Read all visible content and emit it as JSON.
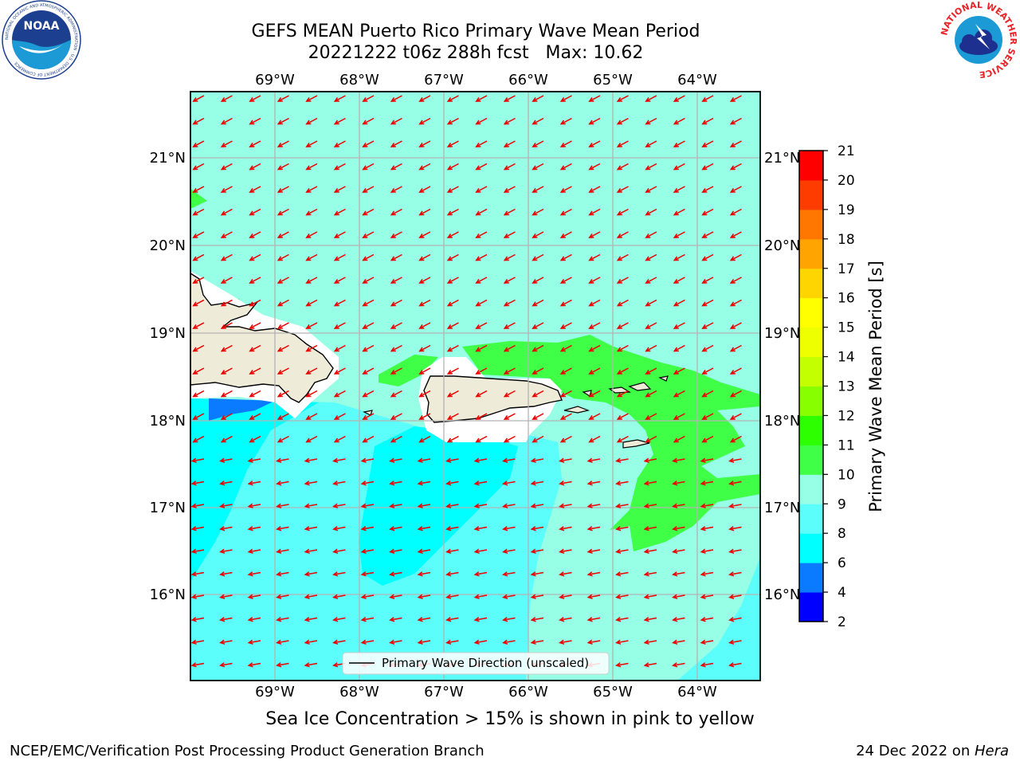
{
  "header": {
    "title_line1": "GEFS MEAN Puerto Rico Primary Wave Mean Period",
    "title_line2": "20221222 t06z 288h fcst   Max: 10.62"
  },
  "map": {
    "lon_ticks": [
      "69°W",
      "68°W",
      "67°W",
      "66°W",
      "65°W",
      "64°W"
    ],
    "lat_ticks": [
      "21°N",
      "20°N",
      "19°N",
      "18°N",
      "17°N",
      "16°N"
    ],
    "legend_label": "Primary Wave Direction (unscaled)",
    "arrow_color": "#ee0000",
    "land_color": "#efebd9"
  },
  "colorbar": {
    "label": "Primary Wave Mean Period [s]",
    "levels": [
      "2",
      "4",
      "6",
      "8",
      "9",
      "10",
      "11",
      "12",
      "13",
      "14",
      "15",
      "16",
      "17",
      "18",
      "19",
      "20",
      "21"
    ],
    "colors": [
      "#0000ff",
      "#0a7bff",
      "#00ffff",
      "#5cfefc",
      "#96ffe6",
      "#3fff46",
      "#2eff00",
      "#88ff00",
      "#c4ff00",
      "#eeff00",
      "#ffff00",
      "#ffd500",
      "#ffa400",
      "#ff7600",
      "#ff3c00",
      "#ff0000"
    ]
  },
  "note": "Sea Ice Concentration > 15% is shown in pink to yellow",
  "footer": {
    "left": "NCEP/EMC/Verification Post Processing Product Generation Branch",
    "right_prefix": "24 Dec 2022 on ",
    "right_machine": "Hera"
  },
  "logos": {
    "left_text": "NOAA",
    "left_ring_text": "NATIONAL OCEANIC AND ATMOSPHERIC ADMINISTRATION · U.S. DEPARTMENT OF COMMERCE",
    "right_ring_text": "NATIONAL WEATHER SERVICE"
  }
}
